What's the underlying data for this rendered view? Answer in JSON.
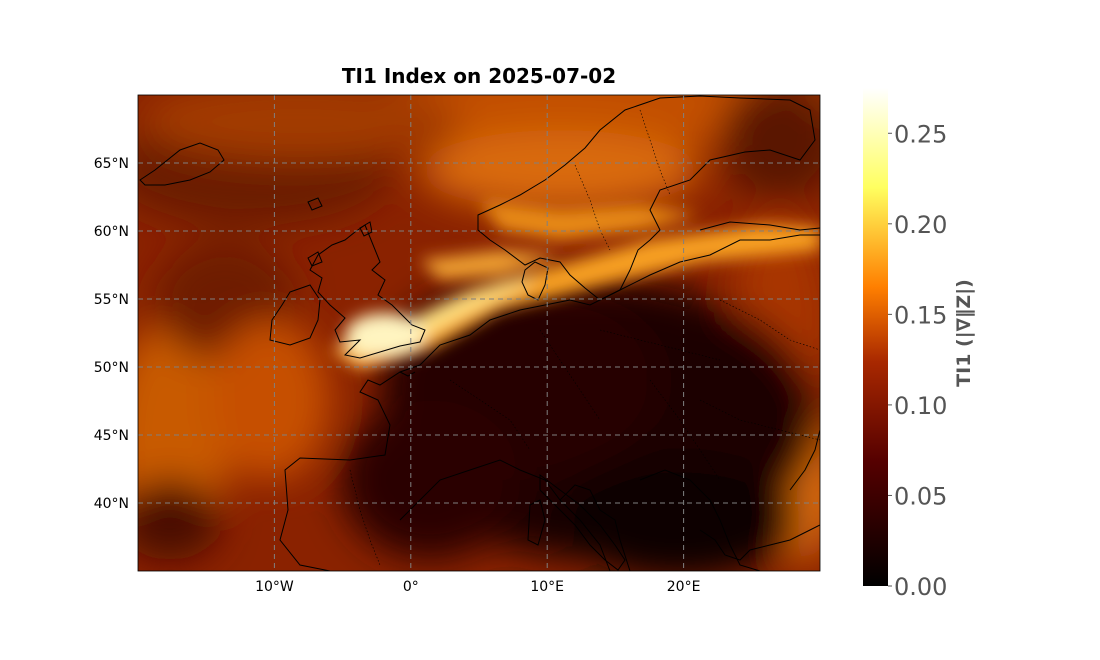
{
  "title": "TI1 Index on 2025-07-02",
  "lon_ticks": [
    {
      "value": -10,
      "label": "10°W"
    },
    {
      "value": 0,
      "label": "0°"
    },
    {
      "value": 10,
      "label": "10°E"
    },
    {
      "value": 20,
      "label": "20°E"
    }
  ],
  "lat_ticks": [
    {
      "value": 65,
      "label": "65°N"
    },
    {
      "value": 60,
      "label": "60°N"
    },
    {
      "value": 55,
      "label": "55°N"
    },
    {
      "value": 50,
      "label": "50°N"
    },
    {
      "value": 45,
      "label": "45°N"
    },
    {
      "value": 40,
      "label": "40°N"
    }
  ],
  "extent": {
    "lon": [
      -20,
      30
    ],
    "lat": [
      35,
      70
    ]
  },
  "colorbar": {
    "label": "TI1 (|∇‖Z|)",
    "range": [
      0,
      0.275
    ],
    "ticks": [
      "0.00",
      "0.05",
      "0.10",
      "0.15",
      "0.20",
      "0.25"
    ],
    "tick_values": [
      0,
      0.05,
      0.1,
      0.15,
      0.2,
      0.25
    ],
    "colormap": "afmhot"
  },
  "colors": {
    "grid": "#808080",
    "coastline": "#000000"
  },
  "features": {
    "gridlines": "dashed",
    "coastlines": true,
    "borders": "dotted"
  }
}
